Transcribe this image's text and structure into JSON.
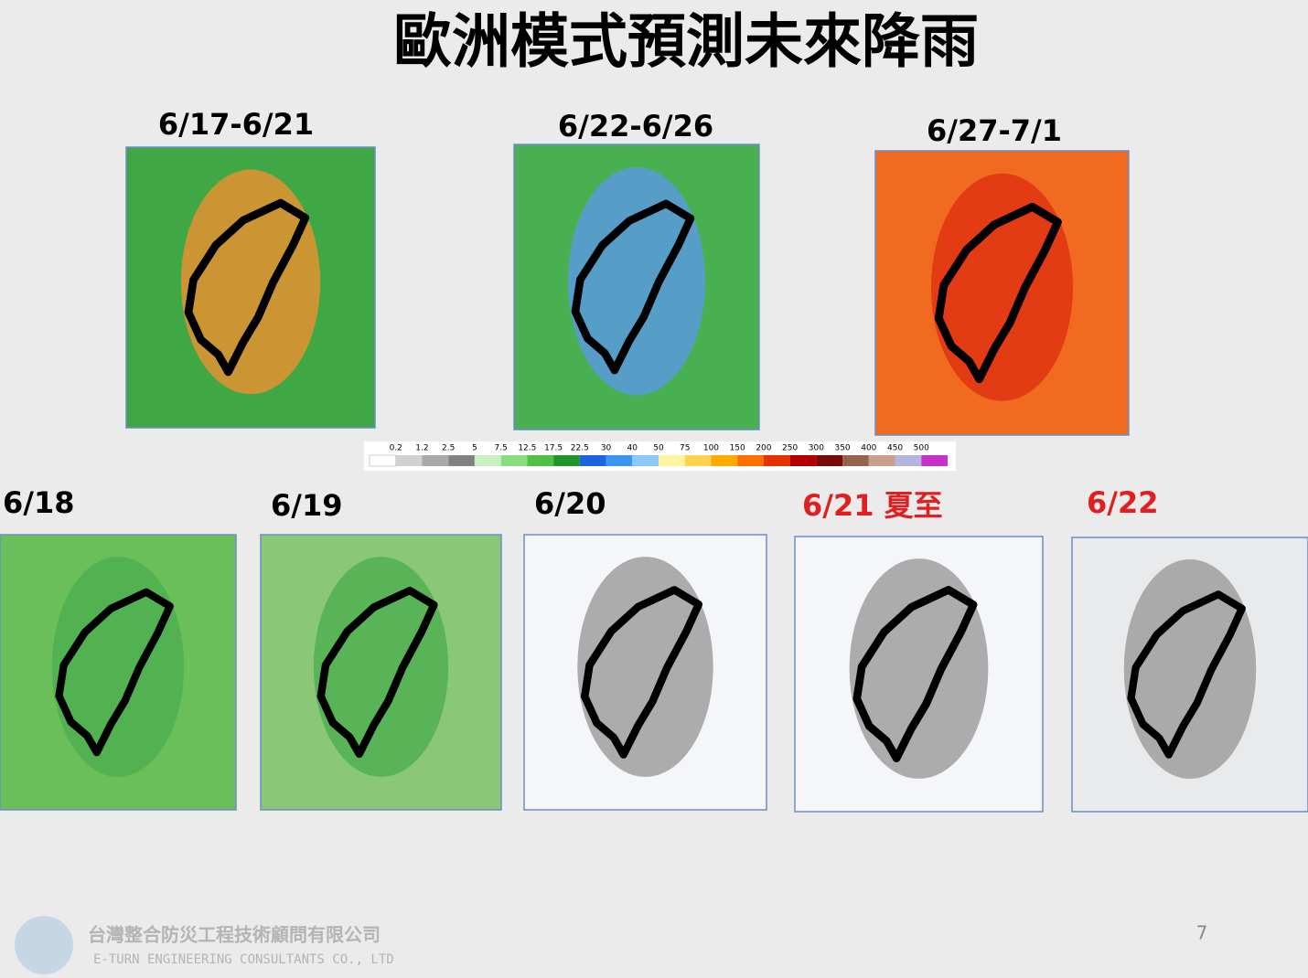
{
  "title": "歐洲模式預測未來降雨",
  "top_maps": [
    {
      "label": "6/17-6/21"
    },
    {
      "label": "6/22-6/26"
    },
    {
      "label": "6/27-7/1"
    }
  ],
  "colorbar": {
    "ticks": [
      0.2,
      1.2,
      2.5,
      5,
      7.5,
      12.5,
      17.5,
      22.5,
      30,
      40,
      50,
      75,
      100,
      150,
      200,
      250,
      300,
      350,
      400,
      450,
      500
    ],
    "colors": [
      "#ffffff",
      "#d2d2d2",
      "#aaaaaa",
      "#828282",
      "#c8f0c0",
      "#8cdc82",
      "#50c046",
      "#1e9628",
      "#1e64dc",
      "#3c96f0",
      "#8cc8fa",
      "#fff5a0",
      "#ffd250",
      "#ffaa00",
      "#ff6e00",
      "#e63200",
      "#b40000",
      "#7a0a0a",
      "#96644b",
      "#c8a08c",
      "#b4b4dc",
      "#c832c8"
    ]
  },
  "daily_maps": [
    {
      "label": "6/18",
      "color": "#000000"
    },
    {
      "label": "6/19",
      "color": "#000000"
    },
    {
      "label": "6/20",
      "color": "#000000"
    },
    {
      "label": "6/21 夏至",
      "color": "#e02020"
    },
    {
      "label": "6/22",
      "color": "#e02020"
    }
  ],
  "footer": {
    "company": "台灣整合防災工程技術顧問有限公司",
    "company_en": "E-TURN ENGINEERING CONSULTANTS CO., LTD",
    "page": 7
  }
}
